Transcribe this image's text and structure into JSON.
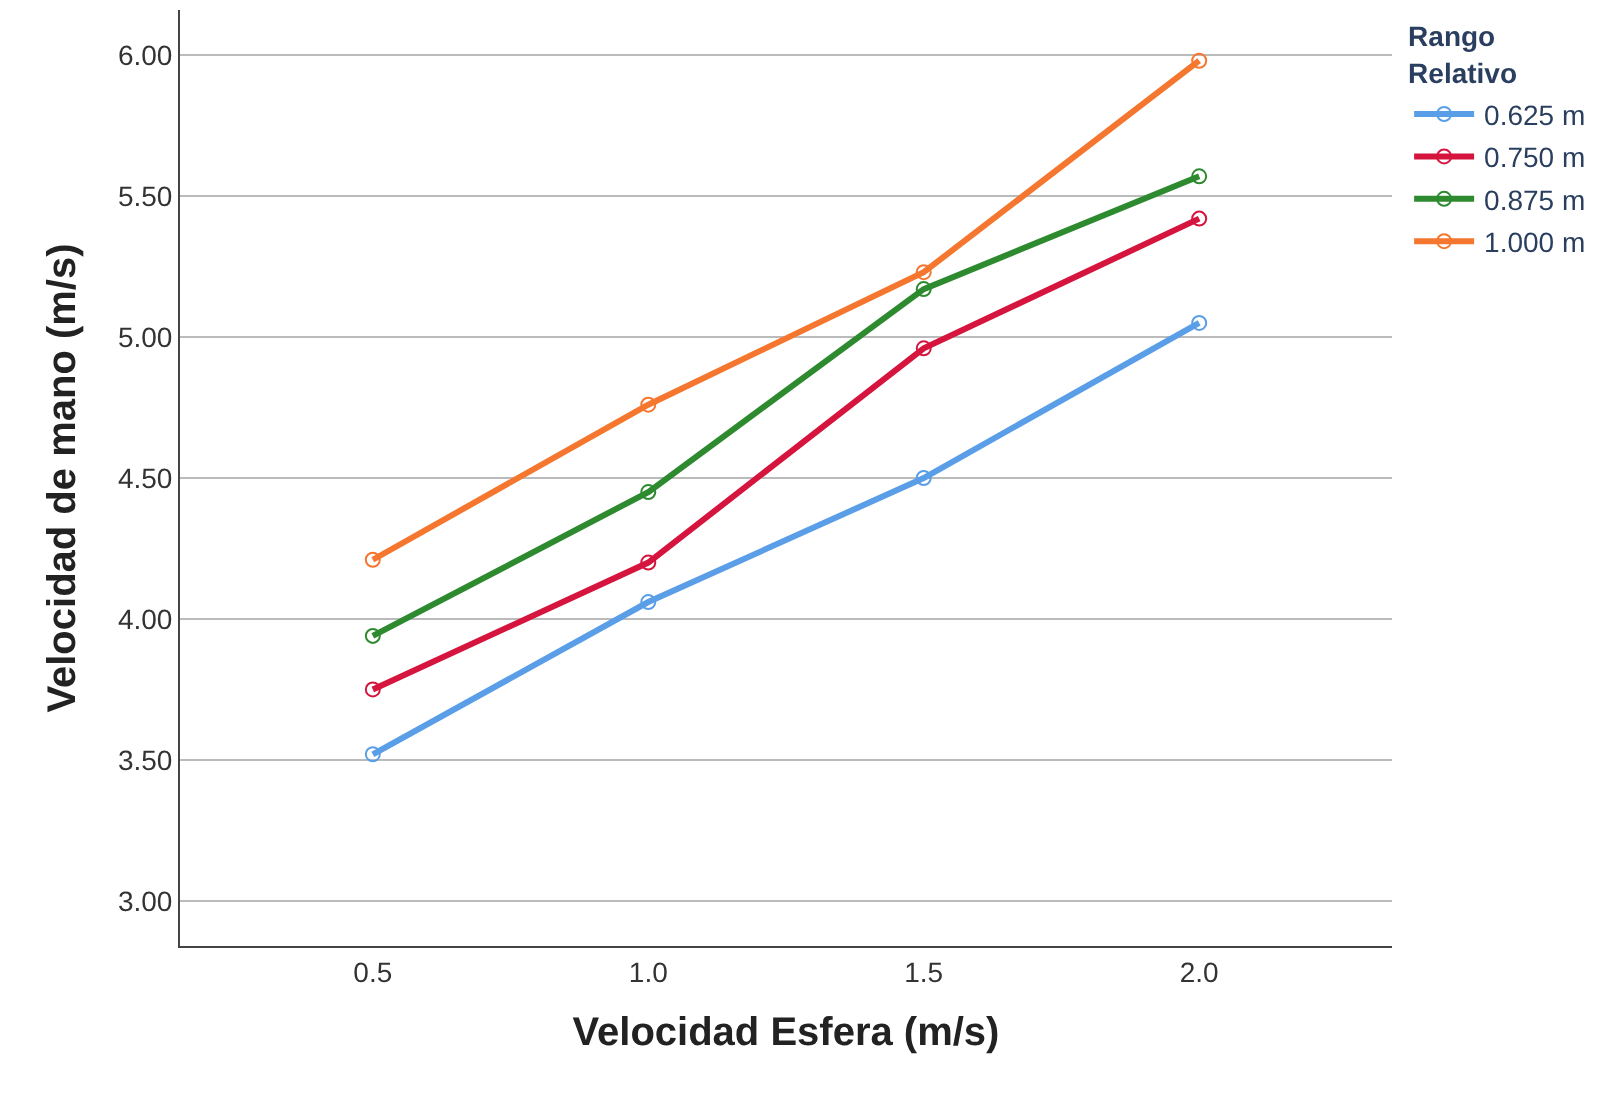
{
  "chart_data": {
    "type": "line",
    "xlabel": "Velocidad Esfera (m/s)",
    "ylabel": "Velocidad de mano (m/s)",
    "legend_title": "Rango Relativo",
    "x": [
      0.5,
      1.0,
      1.5,
      2.0
    ],
    "series": [
      {
        "name": "0.625 m",
        "color": "#5b9ee8",
        "values": [
          3.52,
          4.06,
          4.5,
          5.05
        ]
      },
      {
        "name": "0.750 m",
        "color": "#d6153f",
        "values": [
          3.75,
          4.2,
          4.96,
          5.42
        ]
      },
      {
        "name": "0.875 m",
        "color": "#2e8a2e",
        "values": [
          3.94,
          4.45,
          5.17,
          5.57
        ]
      },
      {
        "name": "1.000 m",
        "color": "#f5772f",
        "values": [
          4.21,
          4.76,
          5.23,
          5.98
        ]
      }
    ],
    "xlim": [
      0.15,
      2.35
    ],
    "xticks": [
      {
        "value": 0.5,
        "label": "0.5"
      },
      {
        "value": 1.0,
        "label": "1.0"
      },
      {
        "value": 1.5,
        "label": "1.5"
      },
      {
        "value": 2.0,
        "label": "2.0"
      }
    ],
    "ylim": [
      2.84,
      6.16
    ],
    "yticks": [
      {
        "value": 3,
        "label": "3.00"
      },
      {
        "value": 3.5,
        "label": "3.50"
      },
      {
        "value": 4,
        "label": "4.00"
      },
      {
        "value": 4.5,
        "label": "4.50"
      },
      {
        "value": 5,
        "label": "5.00"
      },
      {
        "value": 5.5,
        "label": "5.50"
      },
      {
        "value": 6,
        "label": "6.00"
      }
    ],
    "grid": "y",
    "legend": "top right",
    "marker": "circle",
    "line_style": "solid"
  }
}
